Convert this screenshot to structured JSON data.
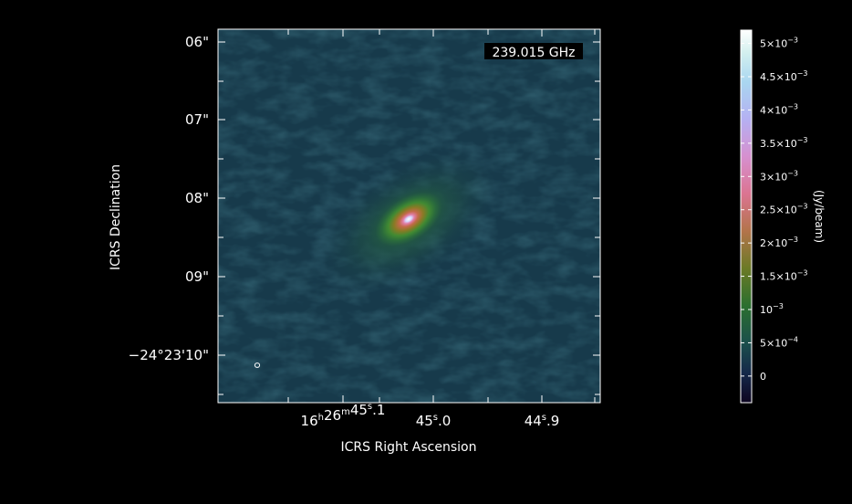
{
  "image": {
    "frequency_label": "239.015 GHz",
    "colormap_name": "cubehelix",
    "beam_marker": "white-ellipse-bottom-left"
  },
  "axes": {
    "xlabel": "ICRS Right Ascension",
    "ylabel": "ICRS Declination",
    "ra_ticks": [
      {
        "h": "16",
        "m": "26",
        "s": "45",
        "frac": ".1"
      },
      {
        "h": "",
        "m": "",
        "s": "45",
        "frac": ".0"
      },
      {
        "h": "",
        "m": "",
        "s": "44",
        "frac": ".9"
      }
    ],
    "dec_ticks": [
      {
        "deg": "",
        "arcmin": "",
        "arcsec": "06\""
      },
      {
        "deg": "",
        "arcmin": "",
        "arcsec": "07\""
      },
      {
        "deg": "",
        "arcmin": "",
        "arcsec": "08\""
      },
      {
        "deg": "",
        "arcmin": "",
        "arcsec": "09\""
      },
      {
        "deg": "−24°",
        "arcmin": "23'",
        "arcsec": "10\""
      }
    ]
  },
  "colorbar": {
    "label": "(Jy/beam)",
    "ticks": [
      {
        "value": 0,
        "mant": "0",
        "exp": ""
      },
      {
        "value": 0.0005,
        "mant": "5×10",
        "exp": "−4"
      },
      {
        "value": 0.001,
        "mant": "10",
        "exp": "−3"
      },
      {
        "value": 0.0015,
        "mant": "1.5×10",
        "exp": "−3"
      },
      {
        "value": 0.002,
        "mant": "2×10",
        "exp": "−3"
      },
      {
        "value": 0.0025,
        "mant": "2.5×10",
        "exp": "−3"
      },
      {
        "value": 0.003,
        "mant": "3×10",
        "exp": "−3"
      },
      {
        "value": 0.0035,
        "mant": "3.5×10",
        "exp": "−3"
      },
      {
        "value": 0.004,
        "mant": "4×10",
        "exp": "−3"
      },
      {
        "value": 0.0045,
        "mant": "4.5×10",
        "exp": "−3"
      },
      {
        "value": 0.005,
        "mant": "5×10",
        "exp": "−3"
      }
    ],
    "range": [
      -0.0004,
      0.0052
    ]
  }
}
